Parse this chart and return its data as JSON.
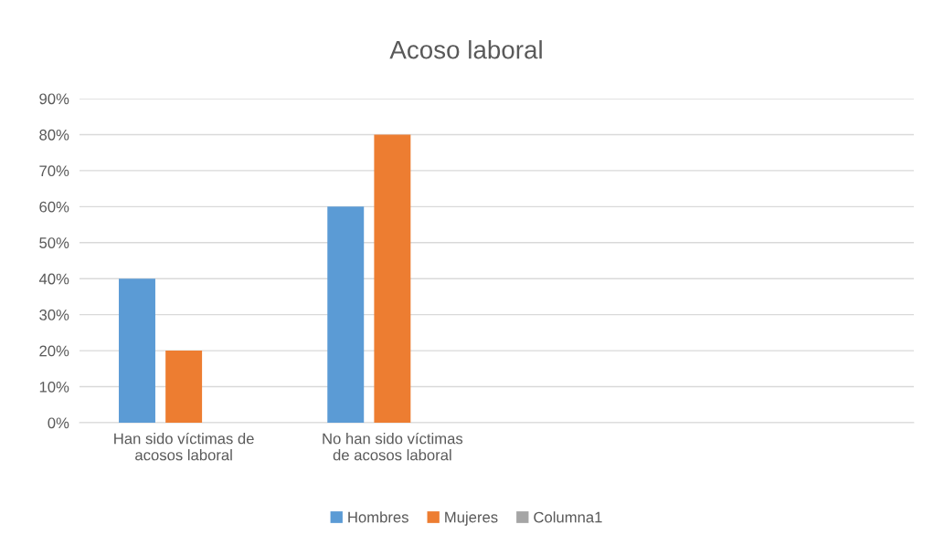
{
  "chart_data": {
    "type": "bar",
    "title": "Acoso laboral",
    "categories": [
      "Han sido víctimas de\nacosos laboral",
      "No han sido víctimas\nde acosos laboral",
      null,
      null
    ],
    "series": [
      {
        "name": "Hombres",
        "color": "#5b9bd5",
        "values": [
          40,
          60,
          null,
          null
        ]
      },
      {
        "name": "Mujeres",
        "color": "#ed7d31",
        "values": [
          20,
          80,
          null,
          null
        ]
      },
      {
        "name": "Columna1",
        "color": "#a5a5a5",
        "values": [
          null,
          null,
          null,
          null
        ]
      }
    ],
    "ylim": [
      0,
      90
    ],
    "yticks": [
      {
        "value": 0,
        "label": "0%"
      },
      {
        "value": 10,
        "label": "10%"
      },
      {
        "value": 20,
        "label": "20%"
      },
      {
        "value": 30,
        "label": "30%"
      },
      {
        "value": 40,
        "label": "40%"
      },
      {
        "value": 50,
        "label": "50%"
      },
      {
        "value": 60,
        "label": "60%"
      },
      {
        "value": 70,
        "label": "70%"
      },
      {
        "value": 80,
        "label": "80%"
      },
      {
        "value": 90,
        "label": "90%"
      }
    ],
    "grid": "y",
    "legend": "bottom"
  }
}
